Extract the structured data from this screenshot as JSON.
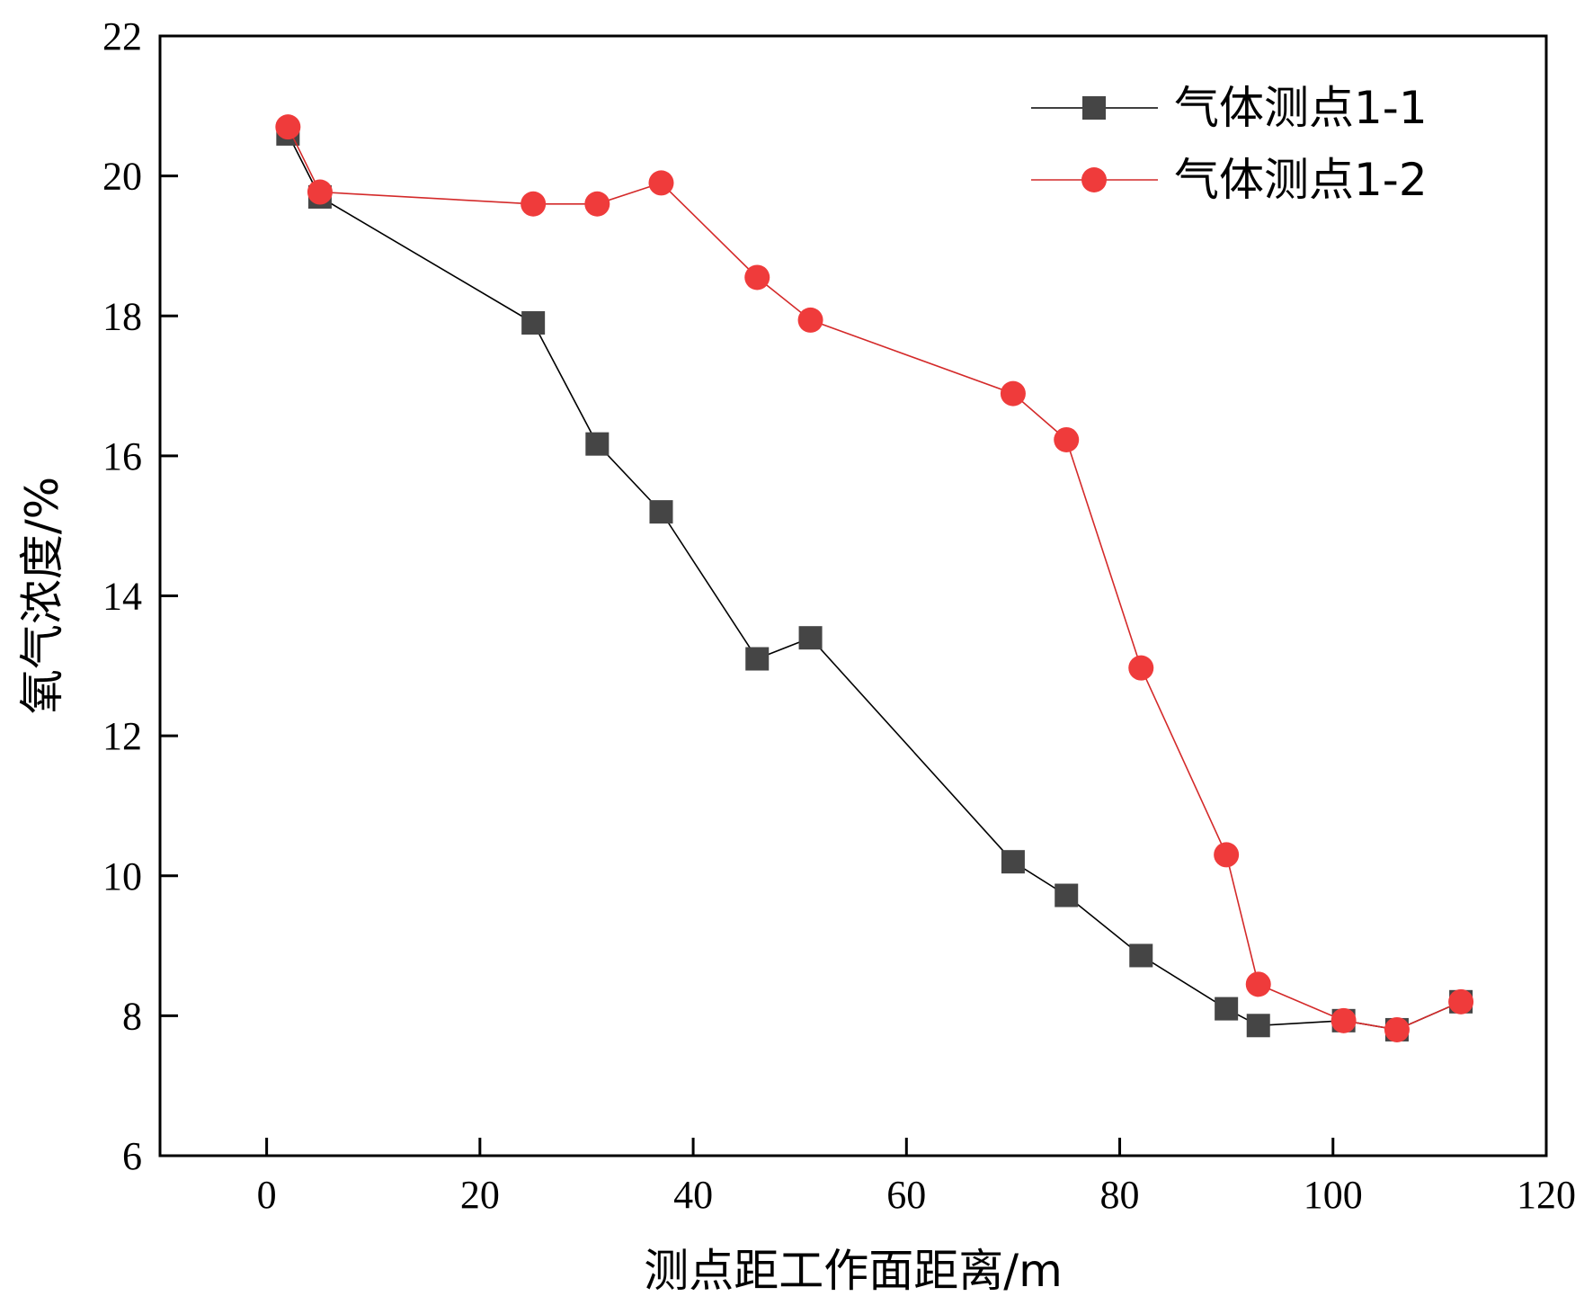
{
  "chart_data": {
    "type": "line",
    "title": "",
    "xlabel": "测点距工作面距离/m",
    "ylabel": "氧气浓度/%",
    "xlim": [
      -10,
      120
    ],
    "ylim": [
      6,
      22
    ],
    "xticks": [
      0,
      20,
      40,
      60,
      80,
      100,
      120
    ],
    "yticks": [
      6,
      8,
      10,
      12,
      14,
      16,
      18,
      20,
      22
    ],
    "grid": false,
    "legend_position": "top-right",
    "series": [
      {
        "name": "气体测点1-1",
        "marker": "square",
        "color": "#454545",
        "line_color": "#000000",
        "x": [
          2,
          5,
          25,
          31,
          37,
          46,
          51,
          70,
          75,
          82,
          90,
          93,
          101,
          106,
          112
        ],
        "y": [
          20.6,
          19.7,
          17.9,
          16.17,
          15.2,
          13.1,
          13.4,
          10.2,
          9.72,
          8.86,
          8.1,
          7.86,
          7.93,
          7.8,
          8.2
        ]
      },
      {
        "name": "气体测点1-2",
        "marker": "circle",
        "color": "#ef3b3b",
        "line_color": "#d42a2a",
        "x": [
          2,
          5,
          25,
          31,
          37,
          46,
          51,
          70,
          75,
          82,
          90,
          93,
          101,
          106,
          112
        ],
        "y": [
          20.7,
          19.77,
          19.6,
          19.6,
          19.9,
          18.55,
          17.94,
          16.89,
          16.23,
          12.97,
          10.3,
          8.45,
          7.93,
          7.8,
          8.2
        ]
      }
    ]
  }
}
